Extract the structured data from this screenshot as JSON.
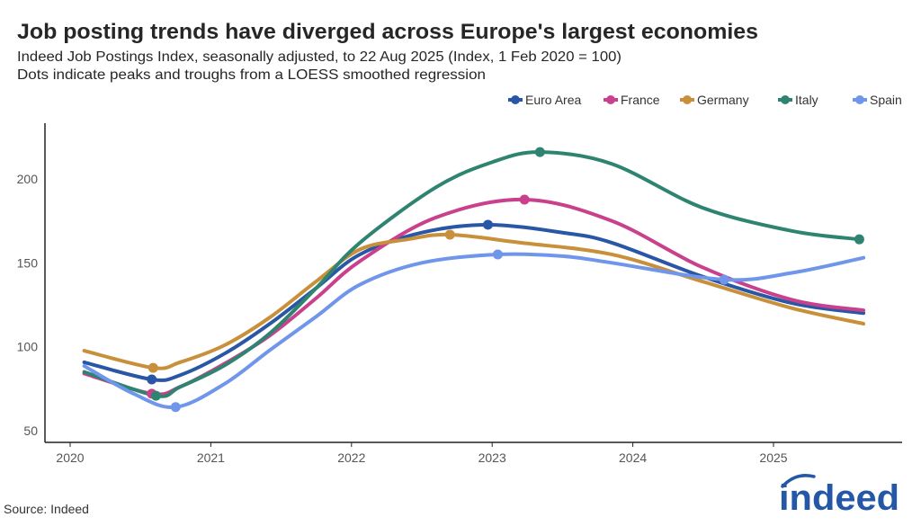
{
  "title": "Job posting trends have diverged across Europe's largest economies",
  "subtitle": "Indeed Job Postings Index, seasonally adjusted, to 22 Aug 2025 (Index, 1 Feb 2020 = 100)",
  "subtitle2": "Dots indicate peaks and troughs from a LOESS smoothed regression",
  "source": "Source: Indeed",
  "logo_text": "indeed",
  "chart_data": {
    "type": "line",
    "title": "Job posting trends have diverged across Europe's largest economies",
    "xlabel": "",
    "ylabel": "",
    "xlim": [
      2019.8,
      2025.9
    ],
    "ylim": [
      43,
      232
    ],
    "x_ticks": [
      "2020",
      "2021",
      "2022",
      "2023",
      "2024",
      "2025"
    ],
    "y_ticks": [
      "50",
      "100",
      "150",
      "200"
    ],
    "grid": false,
    "legend_placement": "top-right",
    "series": [
      {
        "name": "Euro Area",
        "color": "#2a56a6",
        "x": [
          2020.1,
          2020.58,
          2020.78,
          2021.1,
          2021.42,
          2021.75,
          2022.06,
          2022.5,
          2022.97,
          2023.5,
          2023.85,
          2024.49,
          2025.13,
          2025.64
        ],
        "y": [
          90.7,
          80.5,
          83,
          96,
          113.7,
          135,
          155,
          168,
          172.7,
          168,
          162,
          142,
          126,
          120
        ],
        "dots": [
          [
            2020.58,
            80.5
          ],
          [
            2022.97,
            172.7
          ]
        ]
      },
      {
        "name": "France",
        "color": "#c9418c",
        "x": [
          2020.1,
          2020.58,
          2020.78,
          2021.1,
          2021.42,
          2021.75,
          2022.06,
          2022.6,
          2023.23,
          2023.85,
          2024.49,
          2025.13,
          2025.64
        ],
        "y": [
          84,
          72,
          76,
          90,
          106.7,
          129,
          151,
          177,
          187.7,
          175,
          147.5,
          128,
          121.7
        ],
        "dots": [
          [
            2020.58,
            72
          ],
          [
            2023.23,
            187.7
          ]
        ]
      },
      {
        "name": "Germany",
        "color": "#c8903a",
        "x": [
          2020.1,
          2020.59,
          2020.78,
          2021.1,
          2021.42,
          2021.75,
          2022.06,
          2022.4,
          2022.7,
          2023.2,
          2023.85,
          2024.49,
          2025.13,
          2025.64
        ],
        "y": [
          97.6,
          87.4,
          90.7,
          101,
          117.5,
          139,
          158,
          164,
          166.8,
          162,
          155,
          139,
          123,
          113.7
        ],
        "dots": [
          [
            2020.59,
            87.4
          ],
          [
            2022.7,
            166.8
          ]
        ]
      },
      {
        "name": "Italy",
        "color": "#2e8470",
        "x": [
          2020.1,
          2020.61,
          2020.78,
          2021.1,
          2021.42,
          2021.75,
          2022.06,
          2022.6,
          2023.0,
          2023.34,
          2023.85,
          2024.49,
          2025.13,
          2025.61
        ],
        "y": [
          85,
          70.8,
          76,
          89,
          108,
          135,
          162,
          195,
          210,
          216,
          209,
          183,
          169,
          164
        ],
        "dots": [
          [
            2020.61,
            70.8
          ],
          [
            2023.34,
            216
          ],
          [
            2025.61,
            164
          ]
        ]
      },
      {
        "name": "Spain",
        "color": "#6f96ea",
        "x": [
          2020.1,
          2020.45,
          2020.75,
          2021.1,
          2021.42,
          2021.75,
          2022.06,
          2022.5,
          2023.04,
          2023.5,
          2023.85,
          2024.65,
          2025.13,
          2025.64
        ],
        "y": [
          88.5,
          72,
          64,
          78,
          98,
          118,
          137,
          150,
          155,
          154,
          150,
          140,
          144,
          153
        ],
        "dots": [
          [
            2020.75,
            64
          ],
          [
            2023.04,
            155
          ],
          [
            2024.65,
            140
          ]
        ]
      }
    ]
  }
}
